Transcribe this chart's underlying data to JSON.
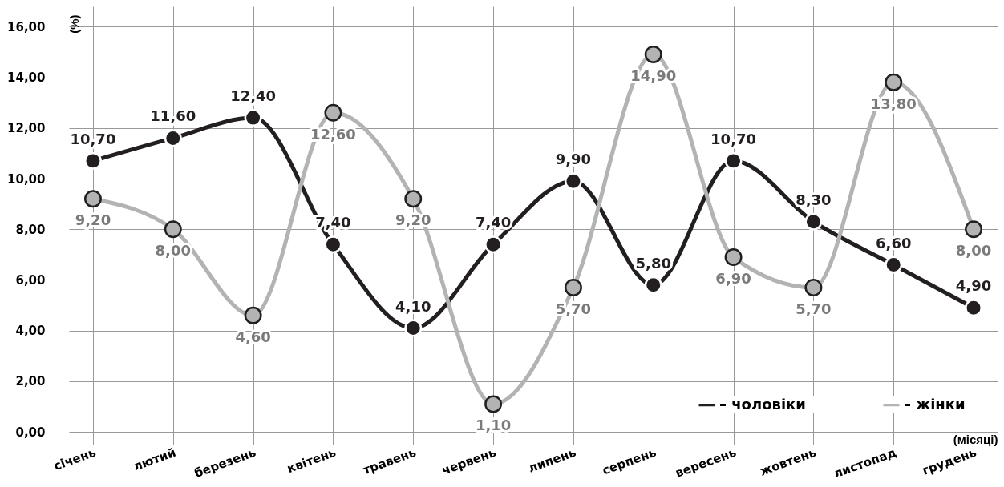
{
  "chart_data": {
    "type": "line",
    "ylabel": "(%)",
    "xlabel": "(місяці)",
    "categories": [
      "січень",
      "лютий",
      "березень",
      "квітень",
      "травень",
      "червень",
      "липень",
      "серпень",
      "вересень",
      "жовтень",
      "листопад",
      "грудень"
    ],
    "series": [
      {
        "name": "– чоловіки",
        "color": "#231f20",
        "values": [
          10.7,
          11.6,
          12.4,
          7.4,
          4.1,
          7.4,
          9.9,
          5.8,
          10.7,
          8.3,
          6.6,
          4.9
        ],
        "value_labels": [
          "10,70",
          "11,60",
          "12,40",
          "7,40",
          "4,10",
          "7,40",
          "9,90",
          "5,80",
          "10,70",
          "8,30",
          "6,60",
          "4,90"
        ]
      },
      {
        "name": "– жінки",
        "color": "#b3b3b3",
        "values": [
          9.2,
          8.0,
          4.6,
          12.6,
          9.2,
          1.1,
          5.7,
          14.9,
          6.9,
          5.7,
          13.8,
          8.0
        ],
        "value_labels": [
          "9,20",
          "8,00",
          "4,60",
          "12,60",
          "9,20",
          "1,10",
          "5,70",
          "14,90",
          "6,90",
          "5,70",
          "13,80",
          "8,00"
        ]
      }
    ],
    "ylim": [
      -0.5,
      16.8
    ],
    "yticks": [
      {
        "value": 0,
        "label": "0,00"
      },
      {
        "value": 2,
        "label": "2,00"
      },
      {
        "value": 4,
        "label": "4,00"
      },
      {
        "value": 6,
        "label": "6,00"
      },
      {
        "value": 8,
        "label": "8,00"
      },
      {
        "value": 10,
        "label": "10,00"
      },
      {
        "value": 12,
        "label": "12,00"
      },
      {
        "value": 14,
        "label": "14,00"
      },
      {
        "value": 16,
        "label": "16,00"
      }
    ],
    "grid": true,
    "legend": "bottom right",
    "marker": "circle",
    "line_style": "solid"
  }
}
